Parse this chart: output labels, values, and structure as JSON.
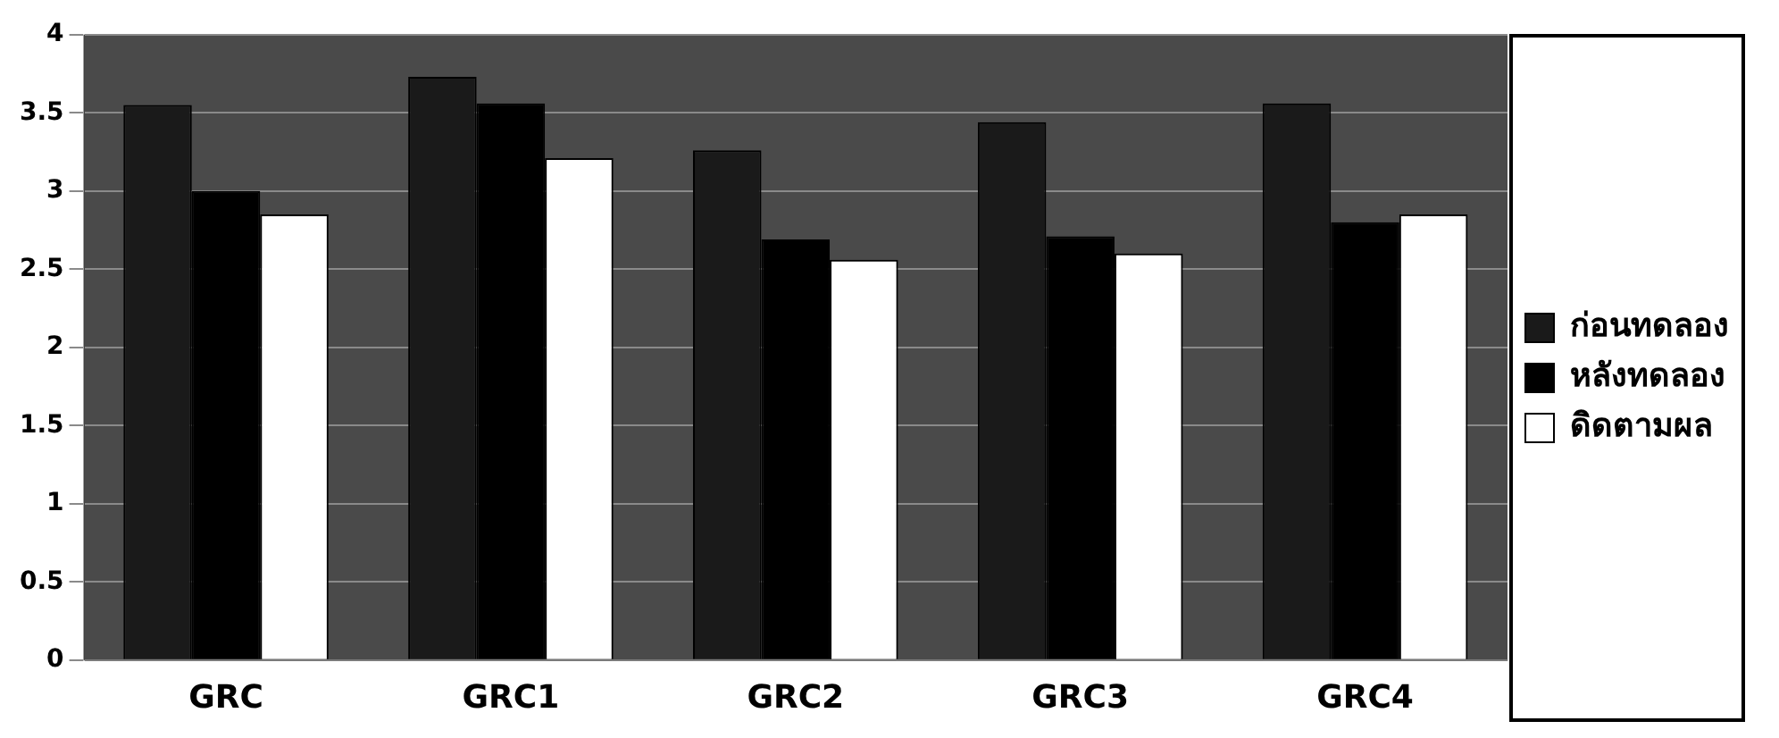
{
  "chart_data": {
    "type": "bar",
    "categories": [
      "GRC",
      "GRC1",
      "GRC2",
      "GRC3",
      "GRC4"
    ],
    "series": [
      {
        "name": "ก่อนทดลอง",
        "color": "#1a1a1a",
        "values": [
          3.55,
          3.73,
          3.26,
          3.44,
          3.56
        ]
      },
      {
        "name": "หลังทดลอง",
        "color": "#000000",
        "values": [
          3.0,
          3.56,
          2.69,
          2.71,
          2.8
        ]
      },
      {
        "name": "ดิดตามผล",
        "color": "#ffffff",
        "values": [
          2.85,
          3.21,
          2.56,
          2.6,
          2.85
        ]
      }
    ],
    "ylim": [
      0,
      4
    ],
    "yticks": [
      0,
      0.5,
      1,
      1.5,
      2,
      2.5,
      3,
      3.5,
      4
    ],
    "grid": "y",
    "legend": "right"
  }
}
